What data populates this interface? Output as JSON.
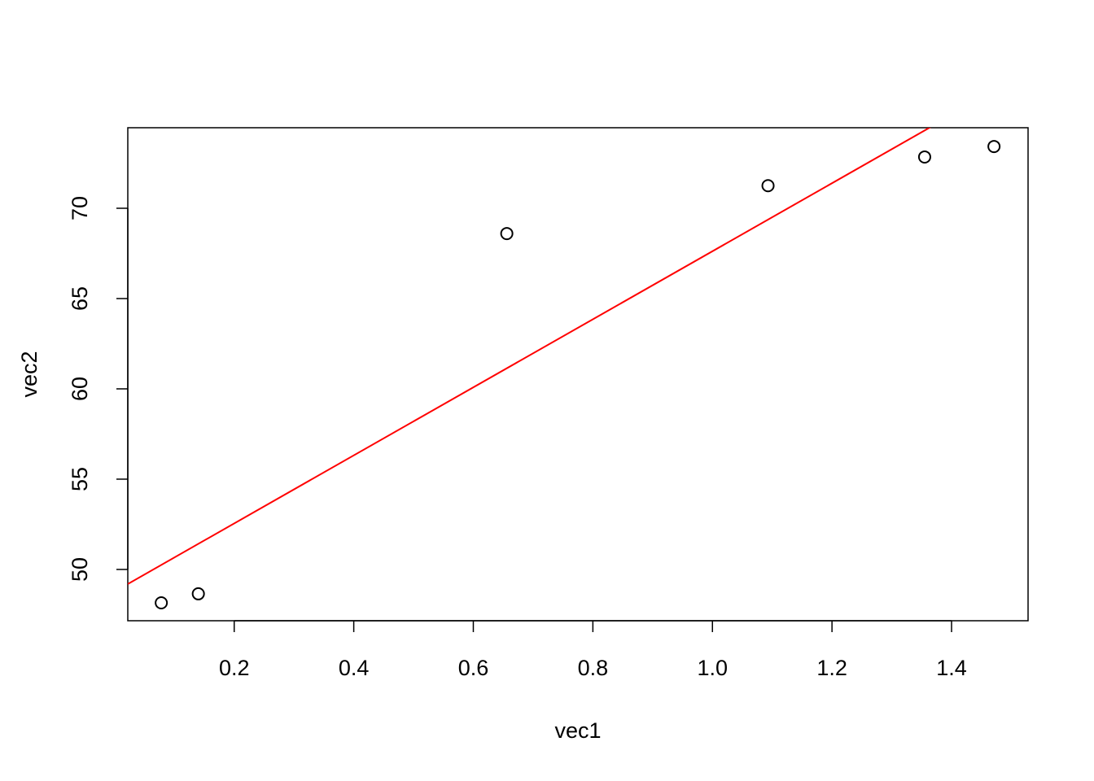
{
  "chart_data": {
    "type": "scatter",
    "x_label": "vec1",
    "y_label": "vec2",
    "x": [
      0.078,
      0.14,
      0.656,
      1.093,
      1.355,
      1.471
    ],
    "values": [
      48.15,
      48.65,
      68.6,
      71.25,
      72.84,
      73.42
    ],
    "color": "#000000",
    "xlim": [
      0.022,
      1.528
    ],
    "ylim": [
      47.16,
      74.46
    ],
    "xticks": [
      0.2,
      0.4,
      0.6,
      0.8,
      {
        "value": 1,
        "label": "1.0"
      },
      1.2,
      1.4
    ],
    "yticks": [
      50,
      55,
      60,
      65,
      70
    ],
    "abline": {
      "intercept": 48.78,
      "slope": 18.84,
      "color": "#ff0000"
    }
  }
}
